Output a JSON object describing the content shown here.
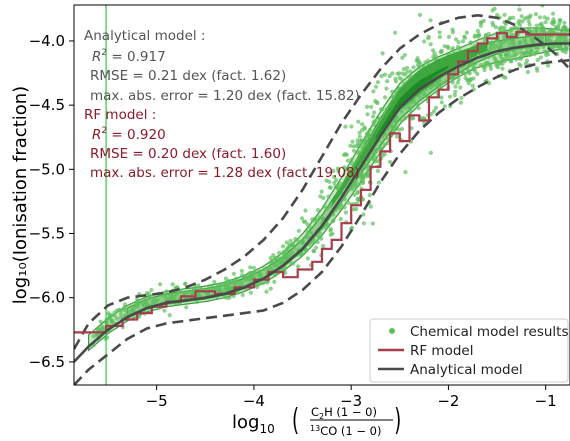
{
  "chart_data": {
    "type": "scatter",
    "xlabel_prefix": "log",
    "xlabel_sub": "10",
    "xlabel_num": "C",
    "xlabel_num_sub": "2",
    "xlabel_num_rest": "H (1 − 0)",
    "xlabel_den_sup": "13",
    "xlabel_den_rest": "CO (1 − 0)",
    "ylabel": "log₁₀(Ionisation fraction)",
    "xlim": [
      -5.85,
      -0.75
    ],
    "ylim": [
      -6.68,
      -3.72
    ],
    "xticks": [
      -5,
      -4,
      -3,
      -2,
      -1
    ],
    "xtick_labels": [
      "−5",
      "−4",
      "−3",
      "−2",
      "−1"
    ],
    "yticks": [
      -6.5,
      -6.0,
      -5.5,
      -5.0,
      -4.5,
      -4.0
    ],
    "ytick_labels": [
      "−6.5",
      "−6.0",
      "−5.5",
      "−5.0",
      "−4.5",
      "−4.0"
    ],
    "vline_x": -5.52,
    "legend": [
      "Chemical model results",
      "RF model",
      "Analytical model"
    ],
    "legend_position": "lower right",
    "colors": {
      "points": "#5cbf5c",
      "contour_fill_1": "#c8e9c3",
      "contour_fill_2": "#8fd18a",
      "contour_fill_3": "#3ea83e",
      "contour_fill_4": "#1e8a26",
      "contour_line": "#3a9b3a",
      "rf_model": "#a83d4c",
      "analytical": "#4a4a4a",
      "vline": "#2ecc40",
      "annot_analytical": "#555555",
      "annot_rf": "#8b1a2b"
    },
    "annotations": {
      "analytical_title": "Analytical model :",
      "analytical_r2_label": "R",
      "analytical_r2_sup": "2",
      "analytical_r2_value": " = 0.917",
      "analytical_rmse": "RMSE  = 0.21 dex (fact. 1.62)",
      "analytical_maxerr": "max. abs. error  = 1.20 dex (fact. 15.82)",
      "rf_title": "RF model :",
      "rf_r2_label": "R",
      "rf_r2_sup": "2",
      "rf_r2_value": " = 0.920",
      "rf_rmse": "RMSE  = 0.20 dex (fact. 1.60)",
      "rf_maxerr": "max. abs. error  = 1.28 dex (fact. 19.08)"
    },
    "rf_model": {
      "name": "RF model",
      "x": [
        -5.85,
        -5.52,
        -5.52,
        -5.35,
        -5.35,
        -5.2,
        -5.2,
        -5.05,
        -5.05,
        -4.9,
        -4.9,
        -4.75,
        -4.75,
        -4.6,
        -4.6,
        -4.4,
        -4.4,
        -4.2,
        -4.2,
        -4.0,
        -4.0,
        -3.85,
        -3.85,
        -3.7,
        -3.7,
        -3.55,
        -3.55,
        -3.4,
        -3.4,
        -3.3,
        -3.3,
        -3.2,
        -3.2,
        -3.1,
        -3.1,
        -3.0,
        -3.0,
        -2.9,
        -2.9,
        -2.8,
        -2.8,
        -2.7,
        -2.7,
        -2.6,
        -2.6,
        -2.5,
        -2.5,
        -2.4,
        -2.4,
        -2.3,
        -2.3,
        -2.2,
        -2.2,
        -2.1,
        -2.1,
        -2.0,
        -2.0,
        -1.9,
        -1.9,
        -1.8,
        -1.8,
        -1.7,
        -1.7,
        -1.6,
        -1.6,
        -1.5,
        -1.5,
        -1.4,
        -1.4,
        -1.3,
        -1.3,
        -1.2,
        -1.2,
        -0.75
      ],
      "y": [
        -6.27,
        -6.27,
        -6.22,
        -6.22,
        -6.17,
        -6.17,
        -6.12,
        -6.12,
        -6.07,
        -6.07,
        -6.03,
        -6.03,
        -5.99,
        -5.99,
        -5.95,
        -5.95,
        -5.97,
        -5.97,
        -5.92,
        -5.92,
        -5.86,
        -5.86,
        -5.8,
        -5.8,
        -5.84,
        -5.84,
        -5.78,
        -5.78,
        -5.72,
        -5.72,
        -5.62,
        -5.62,
        -5.55,
        -5.55,
        -5.42,
        -5.42,
        -5.28,
        -5.28,
        -5.16,
        -5.16,
        -4.98,
        -4.98,
        -4.86,
        -4.86,
        -4.72,
        -4.72,
        -4.78,
        -4.78,
        -4.58,
        -4.58,
        -4.62,
        -4.62,
        -4.44,
        -4.44,
        -4.38,
        -4.38,
        -4.26,
        -4.26,
        -4.16,
        -4.16,
        -4.08,
        -4.08,
        -4.02,
        -4.02,
        -3.98,
        -3.98,
        -3.94,
        -3.94,
        -3.97,
        -3.97,
        -3.93,
        -3.93,
        -3.95,
        -3.95
      ]
    },
    "analytical_model": {
      "name": "Analytical model",
      "x": [
        -5.85,
        -5.7,
        -5.5,
        -5.3,
        -5.1,
        -4.9,
        -4.7,
        -4.5,
        -4.3,
        -4.1,
        -3.9,
        -3.7,
        -3.5,
        -3.3,
        -3.1,
        -2.9,
        -2.7,
        -2.5,
        -2.3,
        -2.1,
        -1.9,
        -1.7,
        -1.5,
        -1.3,
        -1.1,
        -0.9,
        -0.75
      ],
      "y": [
        -6.5,
        -6.38,
        -6.25,
        -6.15,
        -6.08,
        -6.04,
        -6.02,
        -6.0,
        -5.97,
        -5.92,
        -5.85,
        -5.75,
        -5.62,
        -5.44,
        -5.22,
        -4.98,
        -4.74,
        -4.52,
        -4.38,
        -4.28,
        -4.2,
        -4.13,
        -4.08,
        -4.05,
        -4.03,
        -4.02,
        -4.02
      ]
    },
    "analytical_upper": {
      "x": [
        -5.85,
        -5.7,
        -5.5,
        -5.3,
        -5.1,
        -4.9,
        -4.7,
        -4.5,
        -4.3,
        -4.1,
        -3.9,
        -3.7,
        -3.5,
        -3.3,
        -3.1,
        -2.9,
        -2.7,
        -2.5,
        -2.3,
        -2.1,
        -1.9,
        -1.7,
        -1.5,
        -1.3,
        -1.1,
        -0.9,
        -0.75
      ],
      "y": [
        -6.4,
        -6.2,
        -6.06,
        -6.0,
        -5.98,
        -5.96,
        -5.92,
        -5.86,
        -5.78,
        -5.68,
        -5.55,
        -5.38,
        -5.16,
        -4.9,
        -4.64,
        -4.42,
        -4.22,
        -4.06,
        -3.95,
        -3.87,
        -3.82,
        -3.8,
        -3.82,
        -3.88,
        -3.98,
        -4.1,
        -4.22
      ]
    },
    "analytical_lower": {
      "x": [
        -5.85,
        -5.7,
        -5.5,
        -5.3,
        -5.1,
        -4.9,
        -4.7,
        -4.5,
        -4.3,
        -4.1,
        -3.9,
        -3.7,
        -3.5,
        -3.3,
        -3.1,
        -2.9,
        -2.7,
        -2.5,
        -2.3,
        -2.1,
        -1.9,
        -1.7,
        -1.5,
        -1.3,
        -1.1,
        -0.9,
        -0.75
      ],
      "y": [
        -6.68,
        -6.56,
        -6.44,
        -6.32,
        -6.24,
        -6.2,
        -6.18,
        -6.16,
        -6.14,
        -6.12,
        -6.1,
        -6.04,
        -5.94,
        -5.8,
        -5.6,
        -5.36,
        -5.1,
        -4.88,
        -4.7,
        -4.56,
        -4.45,
        -4.36,
        -4.28,
        -4.22,
        -4.18,
        -4.16,
        -4.15
      ]
    }
  }
}
